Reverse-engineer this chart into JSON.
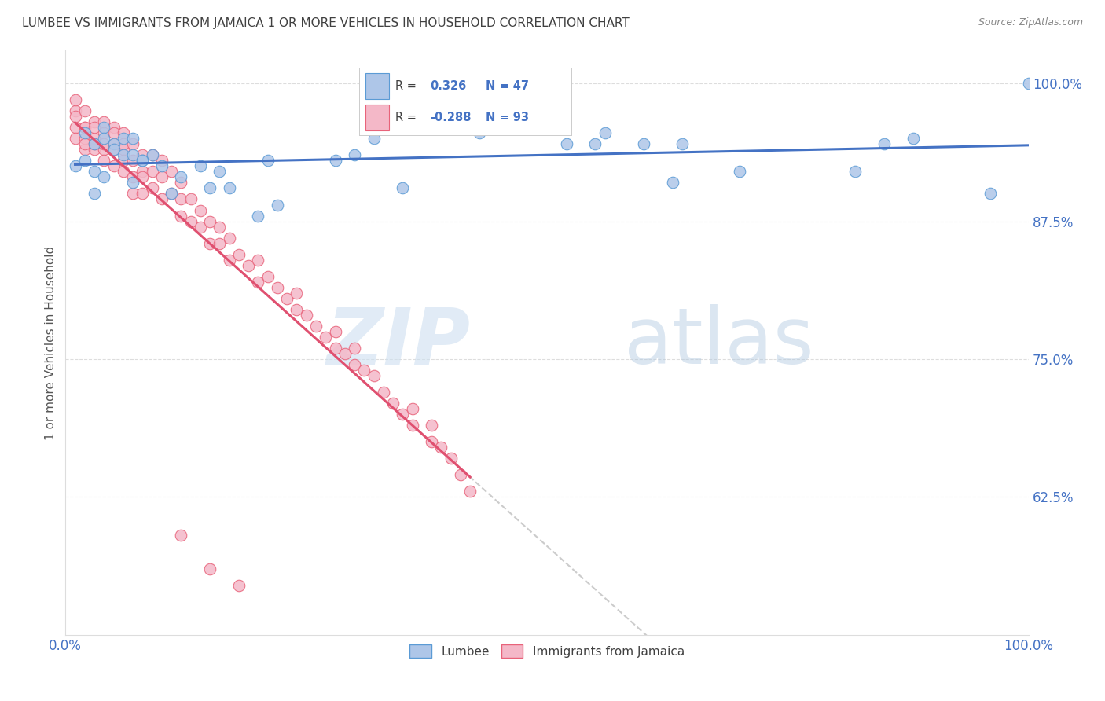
{
  "title": "LUMBEE VS IMMIGRANTS FROM JAMAICA 1 OR MORE VEHICLES IN HOUSEHOLD CORRELATION CHART",
  "source": "Source: ZipAtlas.com",
  "ylabel": "1 or more Vehicles in Household",
  "xlim": [
    0.0,
    1.0
  ],
  "ylim": [
    0.5,
    1.03
  ],
  "yticks": [
    0.625,
    0.75,
    0.875,
    1.0
  ],
  "ytick_labels": [
    "62.5%",
    "75.0%",
    "87.5%",
    "100.0%"
  ],
  "xticks": [
    0.0,
    0.2,
    0.4,
    0.6,
    0.8,
    1.0
  ],
  "xtick_labels": [
    "0.0%",
    "",
    "",
    "",
    "",
    "100.0%"
  ],
  "legend_labels": [
    "Lumbee",
    "Immigrants from Jamaica"
  ],
  "blue_R": 0.326,
  "blue_N": 47,
  "pink_R": -0.288,
  "pink_N": 93,
  "blue_color": "#aec6e8",
  "pink_color": "#f4b8c8",
  "blue_edge_color": "#5b9bd5",
  "pink_edge_color": "#e8637a",
  "blue_line_color": "#4472c4",
  "pink_line_color": "#e05070",
  "dashed_color": "#cccccc",
  "axis_color": "#4472c4",
  "title_color": "#404040",
  "blue_scatter_x": [
    0.01,
    0.02,
    0.02,
    0.03,
    0.03,
    0.04,
    0.04,
    0.05,
    0.05,
    0.06,
    0.06,
    0.07,
    0.07,
    0.08,
    0.09,
    0.1,
    0.11,
    0.12,
    0.14,
    0.15,
    0.16,
    0.17,
    0.2,
    0.21,
    0.22,
    0.28,
    0.3,
    0.32,
    0.35,
    0.43,
    0.5,
    0.52,
    0.55,
    0.56,
    0.6,
    0.63,
    0.64,
    0.7,
    0.82,
    0.85,
    0.88,
    0.96,
    1.0,
    0.03,
    0.04,
    0.07,
    0.08
  ],
  "blue_scatter_y": [
    0.925,
    0.955,
    0.93,
    0.945,
    0.92,
    0.96,
    0.915,
    0.945,
    0.94,
    0.935,
    0.95,
    0.935,
    0.91,
    0.93,
    0.935,
    0.925,
    0.9,
    0.915,
    0.925,
    0.905,
    0.92,
    0.905,
    0.88,
    0.93,
    0.89,
    0.93,
    0.935,
    0.95,
    0.905,
    0.955,
    0.96,
    0.945,
    0.945,
    0.955,
    0.945,
    0.91,
    0.945,
    0.92,
    0.92,
    0.945,
    0.95,
    0.9,
    1.0,
    0.9,
    0.95,
    0.95,
    0.93
  ],
  "pink_scatter_x": [
    0.01,
    0.01,
    0.01,
    0.01,
    0.01,
    0.02,
    0.02,
    0.02,
    0.02,
    0.02,
    0.02,
    0.03,
    0.03,
    0.03,
    0.03,
    0.03,
    0.04,
    0.04,
    0.04,
    0.04,
    0.04,
    0.05,
    0.05,
    0.05,
    0.05,
    0.05,
    0.06,
    0.06,
    0.06,
    0.06,
    0.06,
    0.07,
    0.07,
    0.07,
    0.07,
    0.08,
    0.08,
    0.08,
    0.08,
    0.09,
    0.09,
    0.09,
    0.1,
    0.1,
    0.1,
    0.11,
    0.11,
    0.12,
    0.12,
    0.12,
    0.13,
    0.13,
    0.14,
    0.14,
    0.15,
    0.15,
    0.16,
    0.16,
    0.17,
    0.17,
    0.18,
    0.19,
    0.2,
    0.2,
    0.21,
    0.22,
    0.23,
    0.24,
    0.24,
    0.25,
    0.26,
    0.27,
    0.28,
    0.28,
    0.29,
    0.3,
    0.3,
    0.31,
    0.32,
    0.33,
    0.34,
    0.35,
    0.36,
    0.36,
    0.38,
    0.38,
    0.39,
    0.4,
    0.41,
    0.42,
    0.12,
    0.15,
    0.18
  ],
  "pink_scatter_y": [
    0.96,
    0.975,
    0.985,
    0.97,
    0.95,
    0.94,
    0.96,
    0.95,
    0.975,
    0.96,
    0.945,
    0.95,
    0.965,
    0.94,
    0.96,
    0.945,
    0.94,
    0.955,
    0.945,
    0.965,
    0.93,
    0.945,
    0.96,
    0.94,
    0.925,
    0.955,
    0.94,
    0.955,
    0.93,
    0.92,
    0.945,
    0.93,
    0.945,
    0.915,
    0.9,
    0.935,
    0.92,
    0.9,
    0.915,
    0.92,
    0.905,
    0.935,
    0.915,
    0.895,
    0.93,
    0.9,
    0.92,
    0.895,
    0.91,
    0.88,
    0.895,
    0.875,
    0.885,
    0.87,
    0.875,
    0.855,
    0.87,
    0.855,
    0.86,
    0.84,
    0.845,
    0.835,
    0.84,
    0.82,
    0.825,
    0.815,
    0.805,
    0.795,
    0.81,
    0.79,
    0.78,
    0.77,
    0.76,
    0.775,
    0.755,
    0.76,
    0.745,
    0.74,
    0.735,
    0.72,
    0.71,
    0.7,
    0.69,
    0.705,
    0.675,
    0.69,
    0.67,
    0.66,
    0.645,
    0.63,
    0.59,
    0.56,
    0.545
  ]
}
